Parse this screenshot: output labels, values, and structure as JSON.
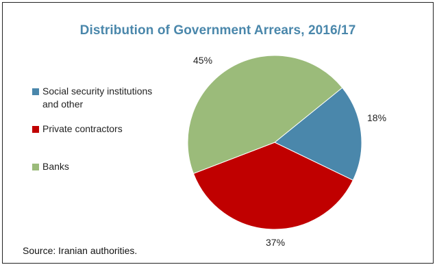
{
  "chart_data": {
    "type": "pie",
    "title": "Distribution of Government Arrears, 2016/17",
    "categories": [
      "Social security institutions and other",
      "Private contractors",
      "Banks"
    ],
    "values": [
      18,
      37,
      45
    ],
    "labels": [
      "18%",
      "37%",
      "45%"
    ],
    "colors": [
      "#4a87ab",
      "#c00000",
      "#9bbb7a"
    ],
    "legend_placement": "left",
    "title_color": "#4a87ab"
  },
  "source": "Source: Iranian authorities."
}
